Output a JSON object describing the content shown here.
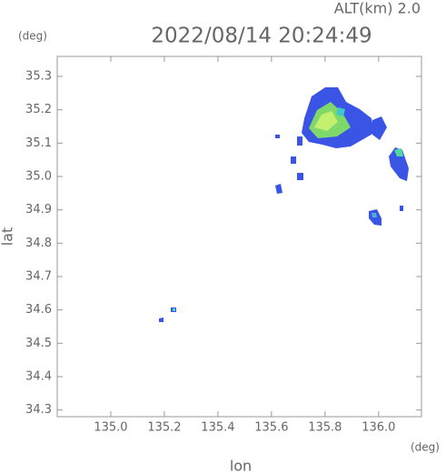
{
  "chart_data": {
    "type": "map",
    "title": "2022/08/14 20:24:49",
    "subtitle": "ALT(km)  2.0",
    "x_label": "lon",
    "y_label": "lat",
    "x_unit": "(deg)",
    "y_unit": "(deg)",
    "xlim": [
      134.8,
      136.16
    ],
    "ylim": [
      34.28,
      35.36
    ],
    "xticks": [
      {
        "value": 135,
        "label": "135.0"
      },
      135.2,
      135.4,
      135.6,
      135.8,
      {
        "value": 136,
        "label": "136.0"
      }
    ],
    "yticks": [
      34.3,
      34.4,
      34.5,
      34.6,
      34.7,
      34.8,
      34.9,
      {
        "value": 35,
        "label": "35.0"
      },
      35.1,
      35.2,
      35.3
    ]
  }
}
